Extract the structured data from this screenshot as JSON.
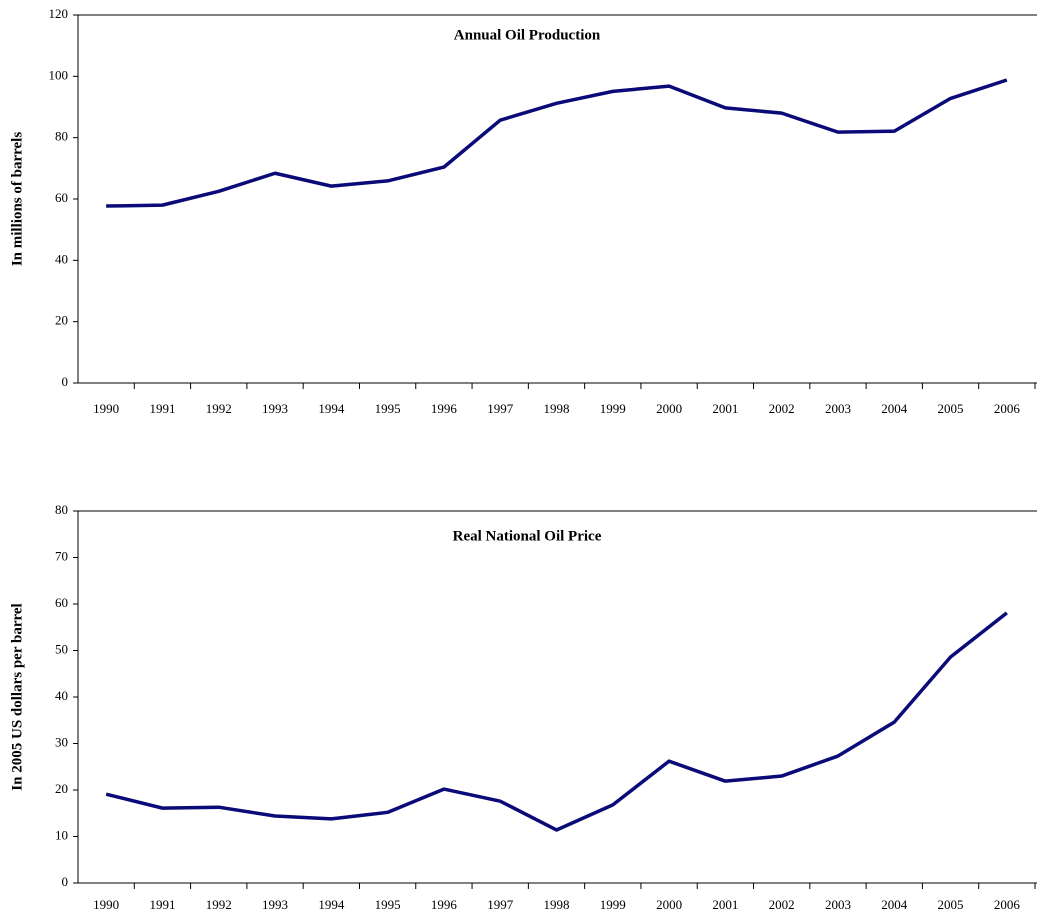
{
  "chart_data": [
    {
      "type": "line",
      "title": "Annual Oil Production",
      "ylabel": "In millions of barrels",
      "categories": [
        "1990",
        "1991",
        "1992",
        "1993",
        "1994",
        "1995",
        "1996",
        "1997",
        "1998",
        "1999",
        "2000",
        "2001",
        "2002",
        "2003",
        "2004",
        "2005",
        "2006"
      ],
      "series": [
        {
          "name": "Annual Oil Production",
          "color": "#0a0a78",
          "values": [
            57.7,
            58,
            62.5,
            68.4,
            64.2,
            65.9,
            70.4,
            85.7,
            91.2,
            95.1,
            96.8,
            89.7,
            88,
            81.8,
            82.1,
            92.8,
            98.8
          ]
        }
      ],
      "ylim": [
        0,
        120
      ],
      "yticks": [
        0,
        20,
        40,
        60,
        80,
        100,
        120
      ]
    },
    {
      "type": "line",
      "title": "Real National Oil Price",
      "ylabel": "In 2005 US dollars per barrel",
      "categories": [
        "1990",
        "1991",
        "1992",
        "1993",
        "1994",
        "1995",
        "1996",
        "1997",
        "1998",
        "1999",
        "2000",
        "2001",
        "2002",
        "2003",
        "2004",
        "2005",
        "2006"
      ],
      "series": [
        {
          "name": "Real National Oil Price",
          "color": "#0a0a78",
          "values": [
            19.1,
            16.1,
            16.3,
            14.4,
            13.8,
            15.2,
            20.2,
            17.6,
            11.4,
            16.8,
            26.2,
            21.9,
            23,
            27.3,
            34.6,
            48.6,
            58.1
          ]
        }
      ],
      "ylim": [
        0,
        80
      ],
      "yticks": [
        0,
        10,
        20,
        30,
        40,
        50,
        60,
        70,
        80
      ]
    }
  ]
}
